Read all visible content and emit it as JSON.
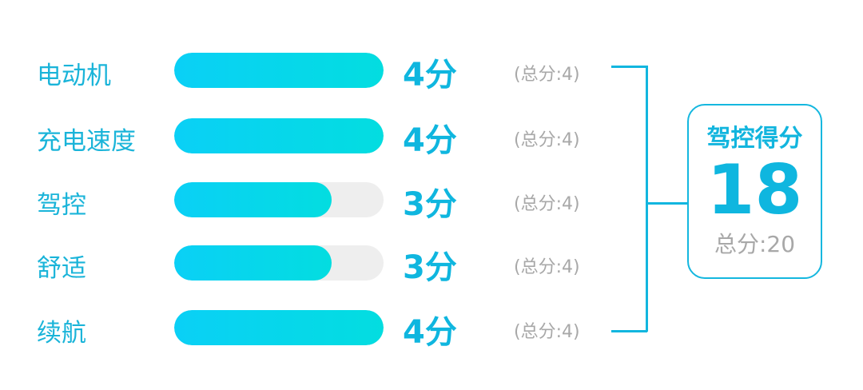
{
  "chart_data": {
    "type": "bar",
    "orientation": "horizontal",
    "categories": [
      "电动机",
      "充电速度",
      "驾控",
      "舒适",
      "续航"
    ],
    "values": [
      4,
      4,
      3,
      3,
      4
    ],
    "max_values": [
      4,
      4,
      4,
      4,
      4
    ],
    "score_labels": [
      "4分",
      "4分",
      "3分",
      "3分",
      "4分"
    ],
    "total_labels": [
      "(总分:4)",
      "(总分:4)",
      "(总分:4)",
      "(总分:4)",
      "(总分:4)"
    ],
    "xlim": [
      0,
      4
    ],
    "colors": {
      "bar_start": "#0ad0f6",
      "bar_end": "#03dde0",
      "track": "#eeeeee",
      "accent": "#12b6df",
      "muted": "#a8a8a8"
    }
  },
  "summary": {
    "title": "驾控得分",
    "score": "18",
    "total": "总分:20"
  }
}
